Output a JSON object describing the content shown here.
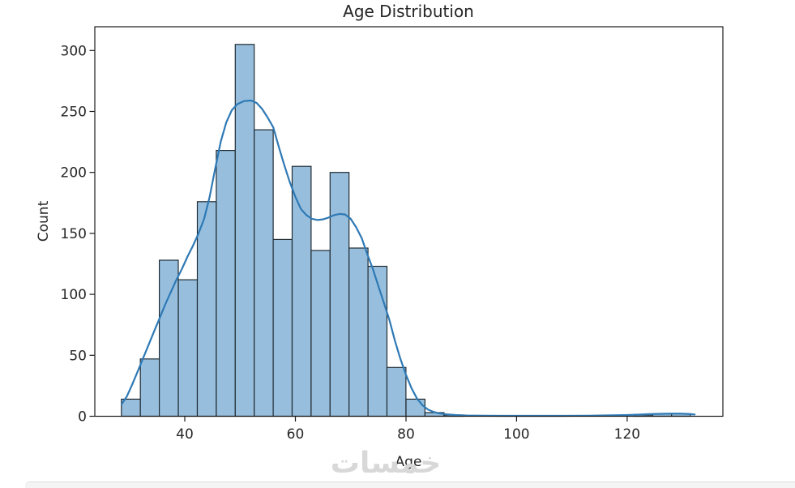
{
  "page": {
    "watermark_text": "خمسات",
    "watermark_color": "#d8d8d8",
    "background": "#ffffff"
  },
  "chart_data": {
    "type": "bar",
    "subtype": "histogram-with-kde",
    "title": "Age Distribution",
    "xlabel": "Age",
    "ylabel": "Count",
    "xlim": [
      23.74,
      137.3
    ],
    "ylim": [
      0,
      319.5
    ],
    "xticks": [
      40,
      60,
      80,
      100,
      120
    ],
    "yticks": [
      0,
      50,
      100,
      150,
      200,
      250,
      300
    ],
    "grid": "off",
    "legend": "none",
    "bin_width": 3.43,
    "bars": [
      {
        "x0": 28.55,
        "x1": 31.98,
        "count": 14
      },
      {
        "x0": 31.98,
        "x1": 35.41,
        "count": 47
      },
      {
        "x0": 35.41,
        "x1": 38.84,
        "count": 128
      },
      {
        "x0": 38.84,
        "x1": 42.27,
        "count": 112
      },
      {
        "x0": 42.27,
        "x1": 45.7,
        "count": 176
      },
      {
        "x0": 45.7,
        "x1": 49.13,
        "count": 218
      },
      {
        "x0": 49.13,
        "x1": 52.56,
        "count": 305
      },
      {
        "x0": 52.56,
        "x1": 55.99,
        "count": 235
      },
      {
        "x0": 55.99,
        "x1": 59.42,
        "count": 145
      },
      {
        "x0": 59.42,
        "x1": 62.85,
        "count": 205
      },
      {
        "x0": 62.85,
        "x1": 66.28,
        "count": 136
      },
      {
        "x0": 66.28,
        "x1": 69.71,
        "count": 200
      },
      {
        "x0": 69.71,
        "x1": 73.14,
        "count": 138
      },
      {
        "x0": 73.14,
        "x1": 76.57,
        "count": 123
      },
      {
        "x0": 76.57,
        "x1": 80.0,
        "count": 40
      },
      {
        "x0": 80.0,
        "x1": 83.43,
        "count": 14
      },
      {
        "x0": 83.43,
        "x1": 86.86,
        "count": 3
      },
      {
        "x0": 86.86,
        "x1": 90.29,
        "count": 1
      },
      {
        "x0": 121.16,
        "x1": 124.59,
        "count": 1
      },
      {
        "x0": 124.59,
        "x1": 128.02,
        "count": 2
      },
      {
        "x0": 128.02,
        "x1": 131.45,
        "count": 2
      }
    ],
    "kde_points": [
      [
        28.6,
        10
      ],
      [
        29.5,
        16
      ],
      [
        30.5,
        26
      ],
      [
        31.5,
        37
      ],
      [
        32.5,
        48
      ],
      [
        33.5,
        59
      ],
      [
        34.5,
        70
      ],
      [
        35.5,
        81
      ],
      [
        36.5,
        92
      ],
      [
        37.5,
        102
      ],
      [
        38.5,
        112
      ],
      [
        39.5,
        121
      ],
      [
        40.5,
        131
      ],
      [
        41.5,
        140
      ],
      [
        42.5,
        150
      ],
      [
        43.5,
        162
      ],
      [
        44.5,
        180
      ],
      [
        45.5,
        203
      ],
      [
        46.5,
        225
      ],
      [
        47.5,
        241
      ],
      [
        48.5,
        251
      ],
      [
        49.5,
        256
      ],
      [
        50.7,
        258.5
      ],
      [
        52,
        259
      ],
      [
        53,
        257
      ],
      [
        54,
        252
      ],
      [
        55,
        245
      ],
      [
        56,
        237
      ],
      [
        57,
        221
      ],
      [
        58,
        206
      ],
      [
        59,
        192
      ],
      [
        60,
        180
      ],
      [
        61,
        170
      ],
      [
        62,
        165
      ],
      [
        63,
        162
      ],
      [
        64,
        161
      ],
      [
        65,
        161.5
      ],
      [
        66,
        163
      ],
      [
        67,
        165
      ],
      [
        68,
        166
      ],
      [
        69,
        165.5
      ],
      [
        70,
        162
      ],
      [
        71,
        155
      ],
      [
        72,
        146
      ],
      [
        73,
        133
      ],
      [
        74,
        121
      ],
      [
        75,
        107
      ],
      [
        76,
        93
      ],
      [
        77,
        79
      ],
      [
        78,
        62
      ],
      [
        79,
        47
      ],
      [
        80,
        34
      ],
      [
        81,
        23
      ],
      [
        82,
        14.5
      ],
      [
        83,
        9
      ],
      [
        84,
        5.5
      ],
      [
        85,
        3.5
      ],
      [
        86,
        2.4
      ],
      [
        87.5,
        1.5
      ],
      [
        89,
        1
      ],
      [
        91,
        0.6
      ],
      [
        94,
        0.4
      ],
      [
        98,
        0.3
      ],
      [
        103,
        0.3
      ],
      [
        108,
        0.35
      ],
      [
        113,
        0.45
      ],
      [
        117,
        0.7
      ],
      [
        120,
        1
      ],
      [
        122,
        1.3
      ],
      [
        124,
        1.7
      ],
      [
        126,
        2
      ],
      [
        128,
        2.2
      ],
      [
        129.5,
        2.2
      ],
      [
        131,
        1.9
      ],
      [
        132.2,
        1.4
      ]
    ],
    "colors": {
      "bar_fill": "#97bfdd",
      "bar_edge": "#202b33",
      "kde_line": "#2e79b5",
      "axis": "#1a1a1a",
      "text": "#262626"
    }
  }
}
